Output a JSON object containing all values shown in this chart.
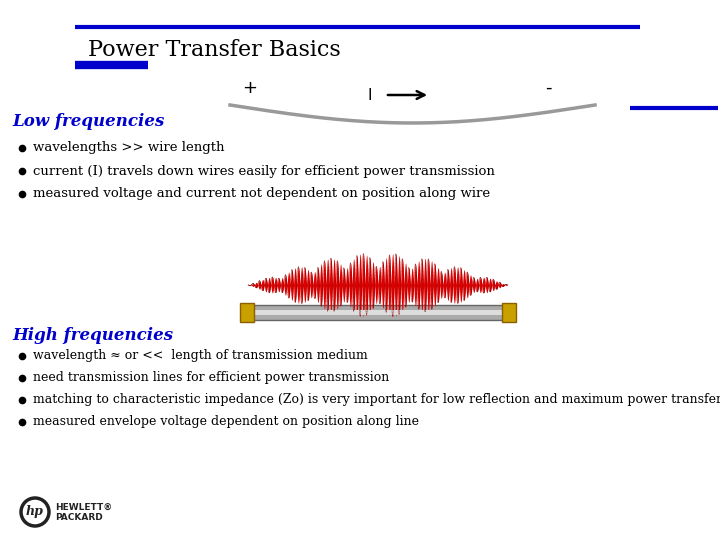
{
  "title": "Power Transfer Basics",
  "title_font": 16,
  "title_color": "#000000",
  "header_line_color": "#0000cc",
  "bg_color": "#ffffff",
  "low_freq_label": "Low frequencies",
  "low_freq_color": "#0000cc",
  "low_freq_bullets": [
    "wavelengths >> wire length",
    "current (I) travels down wires easily for efficient power transmission",
    "measured voltage and current not dependent on position along wire"
  ],
  "high_freq_label": "High frequencies",
  "high_freq_color": "#0000cc",
  "high_freq_bullets": [
    "wavelength ≈ or <<  length of transmission medium",
    "need transmission lines for efficient power transmission",
    "matching to characteristic impedance (Zo) is very important for low reflection and maximum power transfer",
    "measured envelope voltage dependent on position along line"
  ],
  "plus_label": "+",
  "minus_label": "-",
  "current_label": "I",
  "wire_color": "#999999",
  "cable_color": "#bbbbbb",
  "connector_color": "#c8a000",
  "red_wave_color": "#dd0000"
}
